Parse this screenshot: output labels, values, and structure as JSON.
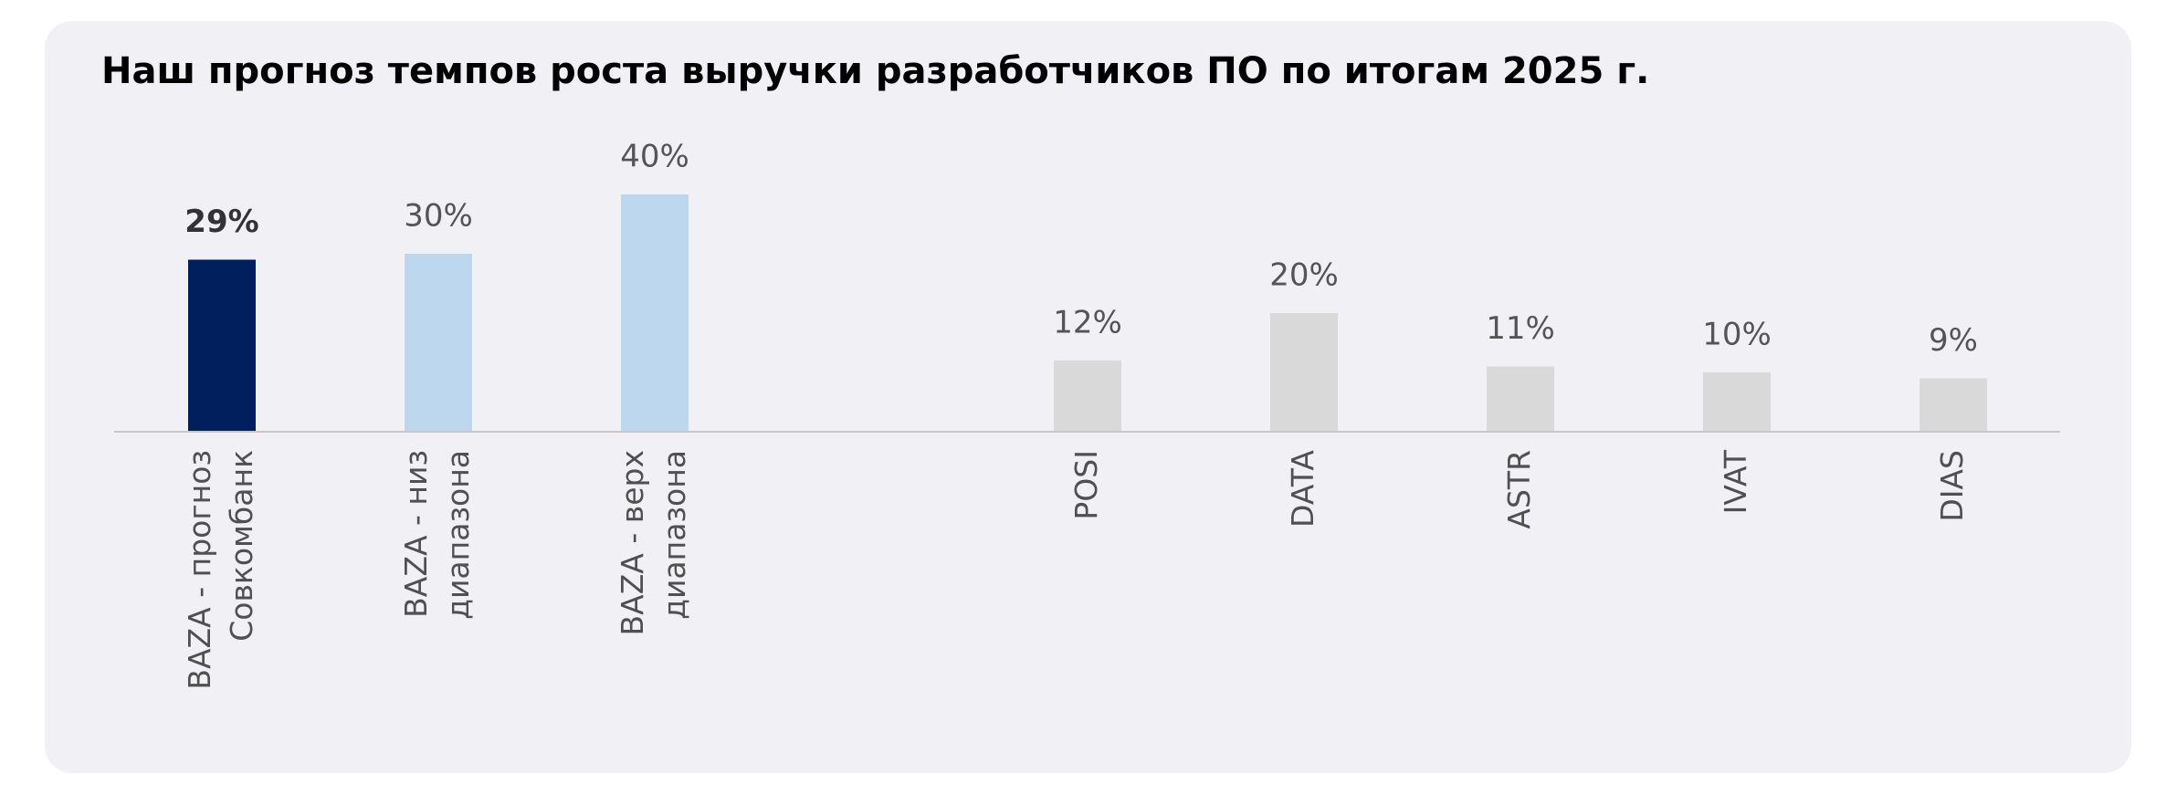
{
  "chart_data": {
    "type": "bar",
    "title": "Наш прогноз темпов роста выручки разработчиков ПО по итогам 2025 г.",
    "categories": [
      "BAZA - прогноз\nСовкомбанк",
      "BAZA - низ\nдиапазона",
      "BAZA - верх\nдиапазона",
      null,
      "POSI",
      "DATA",
      "ASTR",
      "IVAT",
      "DIAS"
    ],
    "values": [
      29,
      30,
      40,
      null,
      12,
      20,
      11,
      10,
      9
    ],
    "value_labels": [
      "29%",
      "30%",
      "40%",
      null,
      "12%",
      "20%",
      "11%",
      "10%",
      "9%"
    ],
    "colors": [
      "#001f5c",
      "#bdd7ee",
      "#bdd7ee",
      null,
      "#d9d9d9",
      "#d9d9d9",
      "#d9d9d9",
      "#d9d9d9",
      "#d9d9d9"
    ],
    "bold_labels": [
      0
    ],
    "ylim": [
      0,
      40
    ]
  }
}
